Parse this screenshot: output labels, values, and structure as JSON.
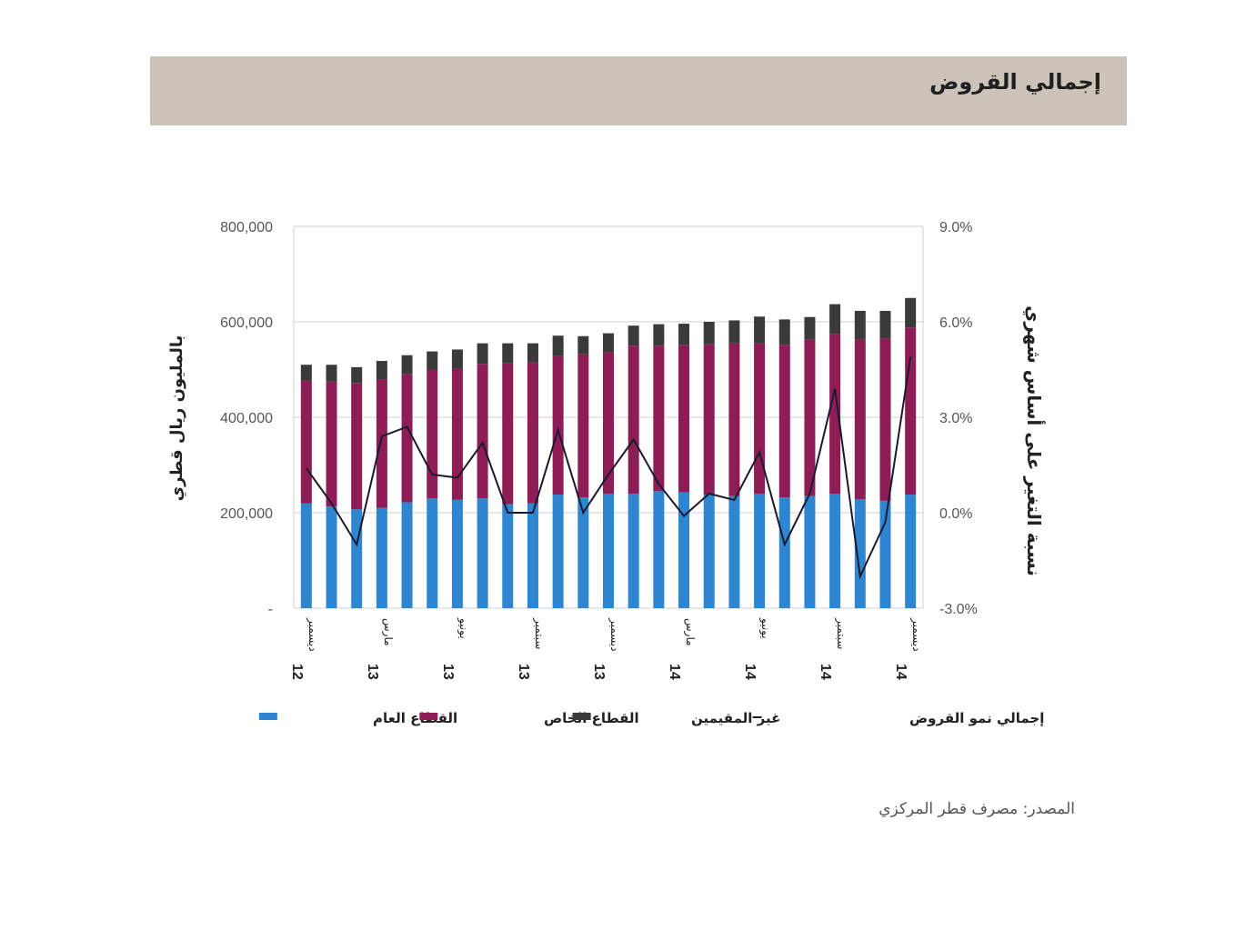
{
  "page": {
    "title": "إجمالي القروض",
    "source": "المصدر: مصرف قطر المركزي"
  },
  "colors": {
    "public": "#2e86d1",
    "private": "#8e1d55",
    "nonresident": "#3a3a3a",
    "line": "#1a1a2e",
    "grid": "#d0d0d0",
    "banner": "#cdc4b9"
  },
  "chart_data": {
    "type": "bar",
    "stacked": true,
    "ylabel": "بالمليون ريال قطري",
    "y2label": "نسبة التغير على أساس شهري",
    "ylim": [
      0,
      800000
    ],
    "y2lim": [
      -3.0,
      9.0
    ],
    "yticks": [
      "-",
      "200,000",
      "400,000",
      "600,000",
      "800,000"
    ],
    "y2ticks": [
      "-3.0%",
      "0.0%",
      "3.0%",
      "6.0%",
      "9.0%"
    ],
    "x_labels": [
      {
        "index": 0,
        "month": "ديسمبر",
        "year": "12"
      },
      {
        "index": 3,
        "month": "مارس",
        "year": "13"
      },
      {
        "index": 6,
        "month": "يونيو",
        "year": "13"
      },
      {
        "index": 9,
        "month": "سبتمبر",
        "year": "13"
      },
      {
        "index": 12,
        "month": "ديسمبر",
        "year": "13"
      },
      {
        "index": 15,
        "month": "مارس",
        "year": "14"
      },
      {
        "index": 18,
        "month": "يونيو",
        "year": "14"
      },
      {
        "index": 21,
        "month": "سبتمبر",
        "year": "14"
      },
      {
        "index": 24,
        "month": "ديسمبر",
        "year": "14"
      }
    ],
    "series": [
      {
        "name": "القطاع العام",
        "key": "public",
        "values": [
          220000,
          213000,
          207000,
          210000,
          222000,
          230000,
          227000,
          230000,
          218000,
          220000,
          238000,
          232000,
          240000,
          240000,
          245000,
          243000,
          238000,
          235000,
          240000,
          232000,
          235000,
          240000,
          228000,
          225000,
          238000
        ]
      },
      {
        "name": "القطاع الخاص",
        "key": "private",
        "values": [
          257000,
          262000,
          265000,
          270000,
          268000,
          270000,
          275000,
          282000,
          295000,
          295000,
          290000,
          300000,
          296000,
          310000,
          305000,
          308000,
          315000,
          320000,
          315000,
          320000,
          328000,
          335000,
          335000,
          340000,
          350000
        ]
      },
      {
        "name": "غير المقيمين",
        "key": "nonresident",
        "values": [
          33000,
          35000,
          33000,
          38000,
          40000,
          38000,
          40000,
          43000,
          42000,
          40000,
          43000,
          38000,
          40000,
          42000,
          45000,
          45000,
          47000,
          48000,
          56000,
          53000,
          47000,
          62000,
          60000,
          58000,
          62000
        ]
      }
    ],
    "line_series": {
      "name": "إجمالي نمو القروض",
      "values": [
        1.4,
        0.3,
        -1.0,
        2.4,
        2.7,
        1.2,
        1.1,
        2.2,
        0.0,
        0.0,
        2.6,
        0.0,
        1.2,
        2.3,
        0.9,
        -0.1,
        0.6,
        0.4,
        1.9,
        -1.0,
        0.6,
        3.9,
        -2.0,
        -0.3,
        4.9
      ]
    },
    "legend_position": "bottom"
  }
}
